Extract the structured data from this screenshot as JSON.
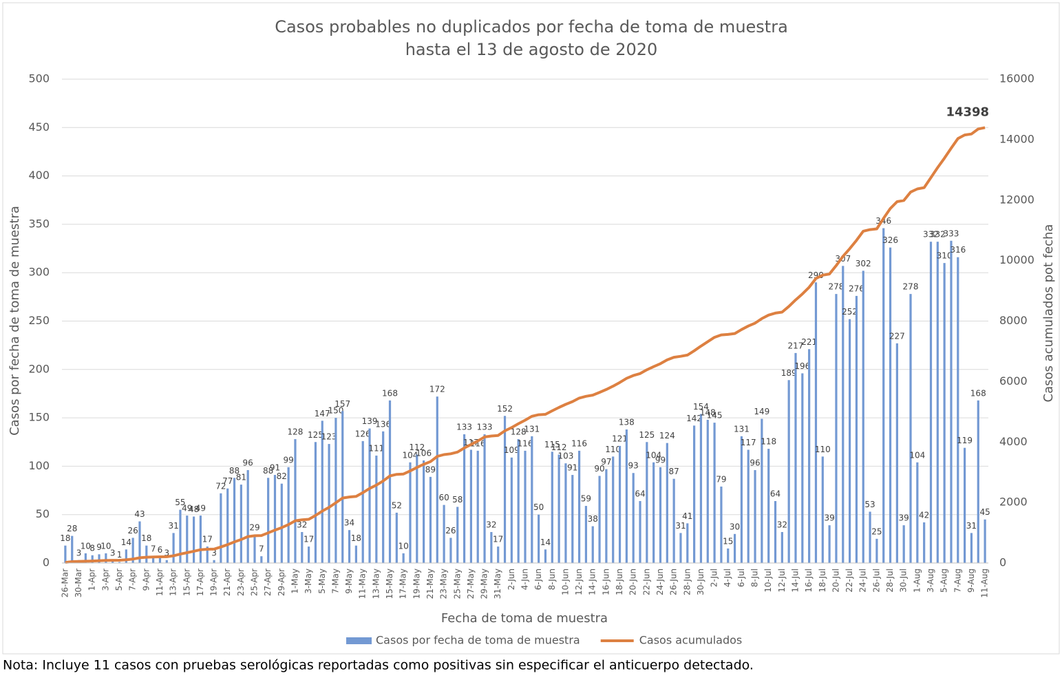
{
  "chart_data": {
    "type": "bar-line",
    "title": "Casos probables no duplicados por fecha de toma de muestra",
    "subtitle": "hasta el  13 de agosto de 2020",
    "x_label": "Fecha de toma de muestra",
    "y_label": "Casos por fecha de toma de muestra",
    "y2_label": "Casos acumulados pot fecha",
    "note": "Nota: Incluye 11 casos con pruebas serológicas reportadas como positivas sin especificar el anticuerpo detectado.",
    "categories": [
      "26-Mar",
      null,
      "30-Mar",
      null,
      "1-Apr",
      null,
      "3-Apr",
      null,
      "5-Apr",
      null,
      "7-Apr",
      null,
      "9-Apr",
      null,
      "11-Apr",
      null,
      "13-Apr",
      null,
      "15-Apr",
      null,
      "17-Apr",
      null,
      "19-Apr",
      null,
      "21-Apr",
      null,
      "23-Apr",
      null,
      "25-Apr",
      null,
      "27-Apr",
      null,
      "29-Apr",
      null,
      "1-May",
      null,
      "3-May",
      null,
      "5-May",
      null,
      "7-May",
      null,
      "9-May",
      null,
      "11-May",
      null,
      "13-May",
      null,
      "15-May",
      null,
      "17-May",
      null,
      "19-May",
      null,
      "21-May",
      null,
      "23-May",
      null,
      "25-May",
      null,
      "27-May",
      null,
      "29-May",
      null,
      "31-May",
      null,
      "2-Jun",
      null,
      "4-Jun",
      null,
      "6-Jun",
      null,
      "8-Jun",
      null,
      "10-Jun",
      null,
      "12-Jun",
      null,
      "14-Jun",
      null,
      "16-Jun",
      null,
      "18-Jun",
      null,
      "20-Jun",
      null,
      "22-Jun",
      null,
      "24-Jun",
      null,
      "26-Jun",
      null,
      "28-Jun",
      null,
      "30-Jun",
      null,
      "2-Jul",
      null,
      "4-Jul",
      null,
      "6-Jul",
      null,
      "8-Jul",
      null,
      "10-Jul",
      null,
      "12-Jul",
      null,
      "14-Jul",
      null,
      "16-Jul",
      null,
      "18-Jul",
      null,
      "20-Jul",
      null,
      "22-Jul",
      null,
      "24-Jul",
      null,
      "26-Jul",
      null,
      "28-Jul",
      null,
      "30-Jul",
      null,
      "1-Aug",
      null,
      "3-Aug",
      null,
      "5-Aug",
      null,
      "7-Aug",
      null,
      "9-Aug",
      null,
      "11-Aug"
    ],
    "series": [
      {
        "name": "Casos por fecha de toma de muestra",
        "type": "bar",
        "color": "#7399d3",
        "values": [
          18,
          28,
          3,
          10,
          8,
          9,
          10,
          3,
          1,
          14,
          26,
          43,
          18,
          7,
          6,
          3,
          31,
          55,
          49,
          48,
          49,
          17,
          3,
          72,
          77,
          88,
          81,
          96,
          29,
          7,
          88,
          91,
          82,
          99,
          128,
          32,
          17,
          125,
          147,
          123,
          150,
          157,
          34,
          18,
          126,
          139,
          111,
          136,
          168,
          52,
          10,
          104,
          112,
          106,
          89,
          172,
          60,
          26,
          58,
          133,
          117,
          116,
          133,
          32,
          17,
          152,
          109,
          128,
          116,
          131,
          50,
          14,
          115,
          112,
          103,
          91,
          116,
          59,
          38,
          90,
          97,
          110,
          121,
          138,
          93,
          64,
          125,
          104,
          99,
          124,
          87,
          31,
          41,
          142,
          154,
          148,
          145,
          79,
          15,
          30,
          131,
          117,
          96,
          149,
          118,
          64,
          32,
          189,
          217,
          196,
          221,
          290,
          110,
          39,
          278,
          307,
          252,
          276,
          302,
          53,
          25,
          346,
          326,
          227,
          39,
          278,
          104,
          42,
          332,
          332,
          310,
          333,
          316,
          119,
          31,
          168,
          45
        ]
      },
      {
        "name": "Casos acumulados",
        "type": "line",
        "axis": "y2",
        "color": "#dd8041",
        "label_last": true,
        "values": [
          18,
          46,
          49,
          59,
          67,
          76,
          86,
          89,
          90,
          104,
          130,
          173,
          191,
          198,
          204,
          207,
          238,
          293,
          342,
          390,
          439,
          456,
          459,
          531,
          608,
          696,
          777,
          873,
          902,
          909,
          997,
          1088,
          1170,
          1269,
          1397,
          1429,
          1446,
          1571,
          1718,
          1841,
          1991,
          2148,
          2182,
          2200,
          2326,
          2465,
          2576,
          2712,
          2880,
          2932,
          2942,
          3046,
          3158,
          3264,
          3353,
          3525,
          3585,
          3611,
          3669,
          3802,
          3919,
          4035,
          4168,
          4200,
          4217,
          4369,
          4478,
          4606,
          4722,
          4853,
          4903,
          4917,
          5032,
          5144,
          5247,
          5338,
          5454,
          5513,
          5551,
          5641,
          5738,
          5848,
          5969,
          6107,
          6200,
          6264,
          6389,
          6493,
          6592,
          6716,
          6803,
          6834,
          6875,
          7017,
          7171,
          7319,
          7464,
          7543,
          7558,
          7588,
          7719,
          7836,
          7932,
          8081,
          8199,
          8263,
          8295,
          8484,
          8701,
          8897,
          9118,
          9408,
          9518,
          9557,
          9835,
          10142,
          10394,
          10670,
          10972,
          11025,
          11050,
          11396,
          11722,
          11949,
          11988,
          12266,
          12370,
          12412,
          12744,
          13076,
          13386,
          13719,
          14035,
          14154,
          14185,
          14353,
          14398
        ]
      }
    ],
    "ylim": [
      0,
      500
    ],
    "yticks": [
      0,
      50,
      100,
      150,
      200,
      250,
      300,
      350,
      400,
      450,
      500
    ],
    "y2lim": [
      0,
      16000
    ],
    "y2ticks": [
      0,
      2000,
      4000,
      6000,
      8000,
      10000,
      12000,
      14000,
      16000
    ],
    "grid": true,
    "legend": "bottom"
  }
}
